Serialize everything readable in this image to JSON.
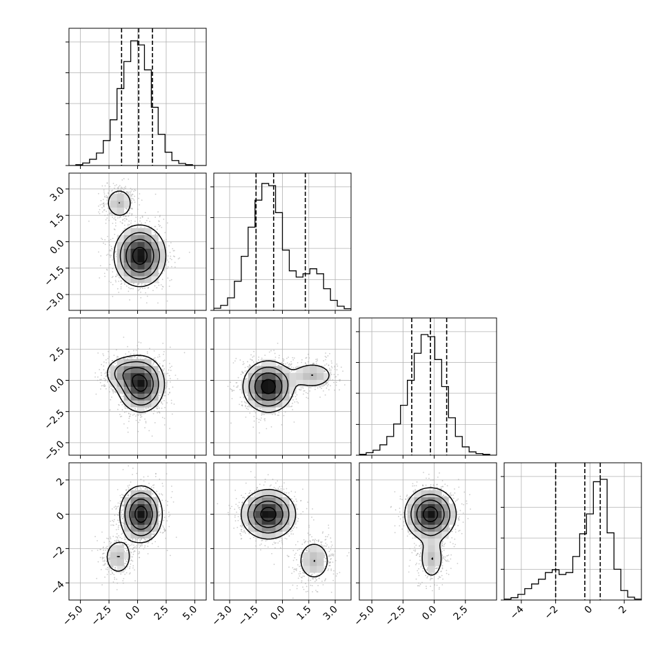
{
  "chart_data": {
    "type": "corner",
    "variables": [
      {
        "id": "p0",
        "range": [
          -6.0,
          6.0
        ],
        "ticks": [
          -5.0,
          -2.5,
          0.0,
          2.5,
          5.0
        ],
        "tick_labels": [
          "−5.0",
          "−2.5",
          "0.0",
          "2.5",
          "5.0"
        ],
        "quantiles": [
          -1.4,
          0.1,
          1.3
        ]
      },
      {
        "id": "p1",
        "range": [
          -3.9,
          3.9
        ],
        "ticks": [
          -3.0,
          -1.5,
          0.0,
          1.5,
          3.0
        ],
        "tick_labels": [
          "−3.0",
          "−1.5",
          "0.0",
          "1.5",
          "3.0"
        ],
        "quantiles": [
          -1.5,
          -0.5,
          1.3
        ]
      },
      {
        "id": "p2",
        "range": [
          -6.0,
          5.0
        ],
        "ticks": [
          -5.0,
          -2.5,
          0.0,
          2.5
        ],
        "tick_labels": [
          "−5.0",
          "−2.5",
          "0.0",
          "2.5"
        ],
        "quantiles": [
          -1.8,
          -0.3,
          1.0
        ]
      },
      {
        "id": "p3",
        "range": [
          -5.0,
          3.0
        ],
        "ticks": [
          -4,
          -2,
          0,
          2
        ],
        "tick_labels": [
          "−4",
          "−2",
          "0",
          "2"
        ],
        "quantiles": [
          -2.0,
          -0.3,
          0.6
        ]
      }
    ],
    "histograms": [
      {
        "variable": "p0",
        "bin_start": -6.0,
        "bin_width": 0.6,
        "counts": [
          0,
          2,
          6,
          15,
          30,
          60,
          110,
          185,
          250,
          300,
          290,
          230,
          140,
          75,
          32,
          12,
          5,
          2,
          0,
          0
        ],
        "y_max": 330
      },
      {
        "variable": "p1",
        "bin_start": -3.9,
        "bin_width": 0.39,
        "counts": [
          5,
          12,
          30,
          70,
          130,
          200,
          265,
          305,
          300,
          235,
          145,
          95,
          80,
          88,
          100,
          88,
          52,
          24,
          10,
          4
        ],
        "y_max": 330
      },
      {
        "variable": "p2",
        "bin_start": -6.0,
        "bin_width": 0.55,
        "counts": [
          2,
          6,
          12,
          25,
          45,
          75,
          120,
          180,
          245,
          290,
          285,
          230,
          165,
          90,
          45,
          20,
          8,
          4,
          2,
          0
        ],
        "y_max": 330
      },
      {
        "variable": "p3",
        "bin_start": -5.0,
        "bin_width": 0.4,
        "counts": [
          2,
          5,
          12,
          24,
          34,
          44,
          58,
          64,
          54,
          58,
          92,
          140,
          182,
          250,
          255,
          142,
          65,
          20,
          6,
          2
        ],
        "y_max": 290
      }
    ],
    "density_panels": [
      {
        "x": "p0",
        "y": "p1",
        "modes": [
          {
            "mx": 0.2,
            "my": -0.8,
            "sx": 1.1,
            "sy": 0.85,
            "w": 1.0
          },
          {
            "mx": -1.6,
            "my": 2.2,
            "sx": 0.7,
            "sy": 0.5,
            "w": 0.3
          }
        ]
      },
      {
        "x": "p0",
        "y": "p2",
        "modes": [
          {
            "mx": 0.3,
            "my": -0.3,
            "sx": 1.0,
            "sy": 1.1,
            "w": 1.0
          },
          {
            "mx": -1.3,
            "my": 0.6,
            "sx": 0.9,
            "sy": 0.7,
            "w": 0.35
          }
        ]
      },
      {
        "x": "p1",
        "y": "p2",
        "modes": [
          {
            "mx": -0.8,
            "my": -0.5,
            "sx": 0.7,
            "sy": 1.0,
            "w": 1.0
          },
          {
            "mx": 1.7,
            "my": 0.4,
            "sx": 0.7,
            "sy": 0.6,
            "w": 0.3
          }
        ]
      },
      {
        "x": "p0",
        "y": "p3",
        "modes": [
          {
            "mx": 0.3,
            "my": 0.0,
            "sx": 0.9,
            "sy": 0.8,
            "w": 1.0
          },
          {
            "mx": -1.7,
            "my": -2.5,
            "sx": 0.7,
            "sy": 0.6,
            "w": 0.3
          }
        ]
      },
      {
        "x": "p1",
        "y": "p3",
        "modes": [
          {
            "mx": -0.8,
            "my": 0.0,
            "sx": 0.75,
            "sy": 0.7,
            "w": 1.0
          },
          {
            "mx": 1.8,
            "my": -2.7,
            "sx": 0.55,
            "sy": 0.7,
            "w": 0.3
          }
        ]
      },
      {
        "x": "p2",
        "y": "p3",
        "modes": [
          {
            "mx": -0.3,
            "my": 0.0,
            "sx": 1.0,
            "sy": 0.75,
            "w": 1.0
          },
          {
            "mx": -0.2,
            "my": -2.6,
            "sx": 0.55,
            "sy": 0.7,
            "w": 0.3
          }
        ]
      }
    ],
    "contour_levels": [
      0.12,
      0.3,
      0.55,
      0.85
    ],
    "grid": true,
    "colors": {
      "line": "#000000",
      "grid": "#b0b0b0",
      "points": "#a8a8a8",
      "frame": "#000000"
    }
  }
}
